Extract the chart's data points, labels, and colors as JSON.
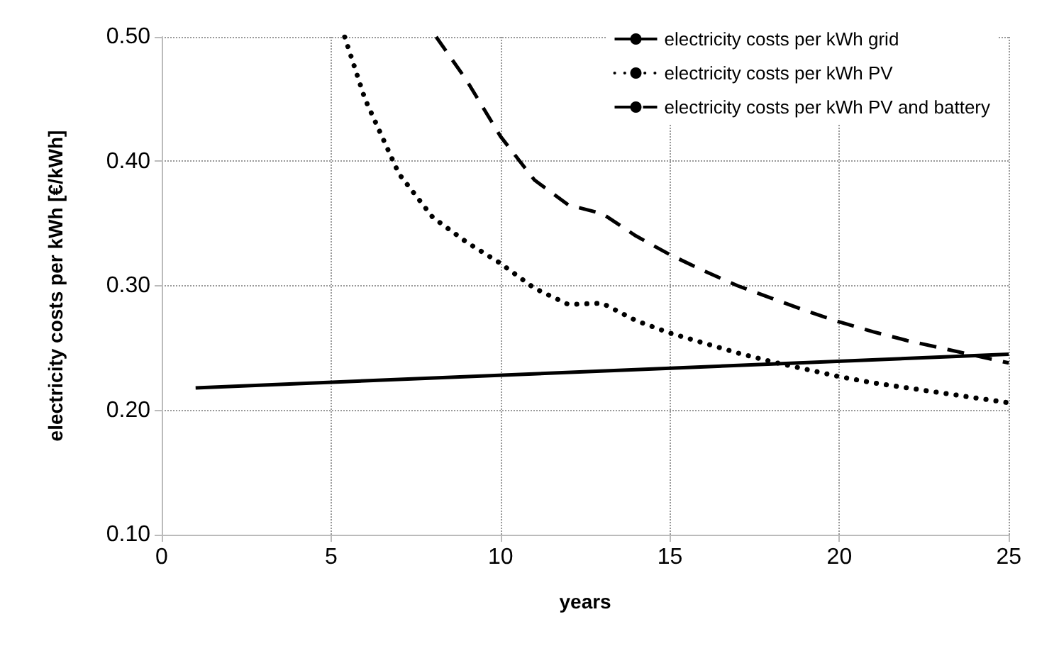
{
  "chart_data": {
    "type": "line",
    "xlabel": "years",
    "ylabel": "electricity costs per kWh [€/kWh]",
    "xlim": [
      0,
      25
    ],
    "xticks": [
      0,
      5,
      10,
      15,
      20,
      25
    ],
    "ylim": [
      0.1,
      0.5
    ],
    "yticks": [
      {
        "value": 0.1,
        "label": "0.10"
      },
      {
        "value": 0.2,
        "label": "0.20"
      },
      {
        "value": 0.3,
        "label": "0.30"
      },
      {
        "value": 0.4,
        "label": "0.40"
      },
      {
        "value": 0.5,
        "label": "0.50"
      }
    ],
    "grid": true,
    "legend": "top right",
    "marker": "none",
    "series": [
      {
        "name": "electricity costs per kWh grid",
        "color": "#000000",
        "line_style": "solid",
        "x": [
          1,
          25
        ],
        "values": [
          0.218,
          0.245
        ]
      },
      {
        "name": "electricity costs per kWh PV",
        "color": "#000000",
        "line_style": "dotted",
        "x": [
          5.4,
          6,
          7,
          8,
          9,
          10,
          11,
          12,
          13,
          14,
          15,
          16,
          17,
          18,
          19,
          20,
          21,
          22,
          23,
          24,
          25
        ],
        "values": [
          0.5,
          0.45,
          0.39,
          0.355,
          0.335,
          0.318,
          0.298,
          0.285,
          0.286,
          0.272,
          0.262,
          0.254,
          0.246,
          0.239,
          0.233,
          0.227,
          0.222,
          0.218,
          0.214,
          0.21,
          0.206
        ]
      },
      {
        "name": "electricity costs per kWh PV and battery",
        "color": "#000000",
        "line_style": "dashed",
        "x": [
          8.1,
          9,
          10,
          11,
          12,
          13,
          14,
          15,
          16,
          17,
          18,
          19,
          20,
          21,
          22,
          23,
          24,
          25
        ],
        "values": [
          0.5,
          0.465,
          0.42,
          0.385,
          0.365,
          0.358,
          0.34,
          0.325,
          0.312,
          0.3,
          0.29,
          0.28,
          0.271,
          0.263,
          0.256,
          0.25,
          0.244,
          0.238
        ]
      }
    ]
  }
}
